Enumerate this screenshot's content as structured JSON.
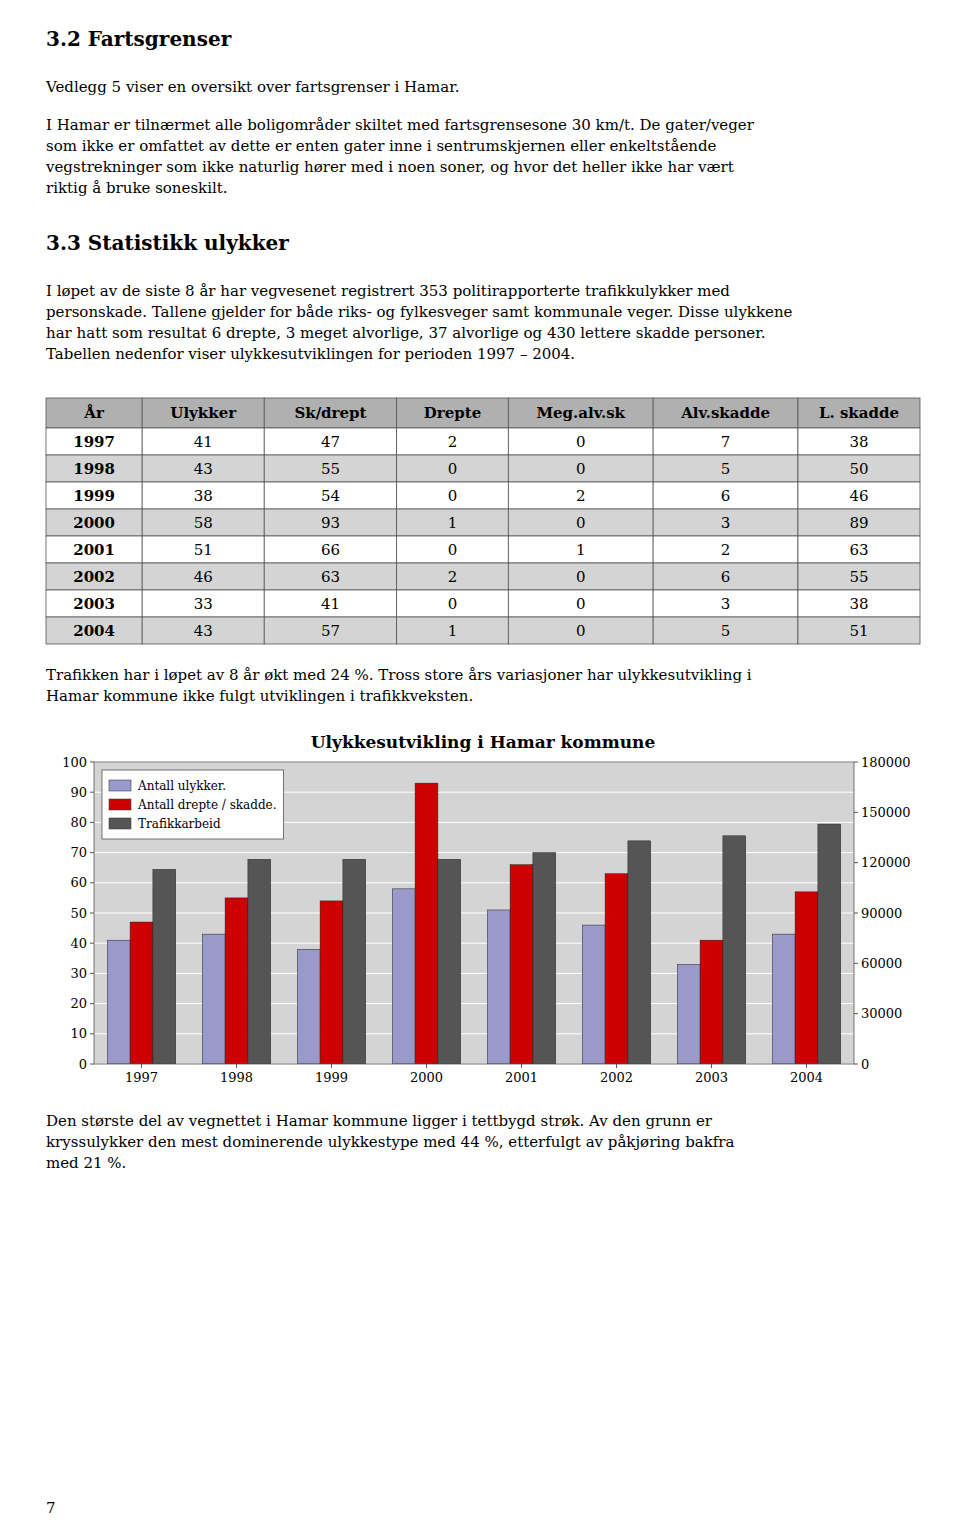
{
  "page": {
    "page_title": "3.2   Fartsgrenser",
    "intro": "Vedlegg 5 viser en oversikt over fartsgrenser i Hamar.",
    "body_lines": [
      "I Hamar er tilnærmet alle boligområder skiltet med fartsgrensesone 30 km/t. De gater/veger",
      "som ikke er omfattet av dette er enten gater inne i sentrumskjernen eller enkeltstående",
      "vegstrekninger som ikke naturlig hører med i noen soner, og hvor det heller ikke har vært",
      "riktig å bruke soneskilt."
    ],
    "section_title": "3.3   Statistikk ulykker",
    "section_lines": [
      "I løpet av de siste 8 år har vegvesenet registrert 353 politirapporterte trafikkulykker med",
      "personskade. Tallene gjelder for både riks- og fylkesveger samt kommunale veger. Disse ulykkene",
      "har hatt som resultat 6 drepte, 3 meget alvorlige, 37 alvorlige og 430 lettere skadde personer.",
      "Tabellen nedenfor viser ulykkesutviklingen for perioden 1997 – 2004."
    ],
    "table": {
      "headers": [
        "År",
        "Ulykker",
        "Sk/drept",
        "Drepte",
        "Meg.alv.sk",
        "Alv.skadde",
        "L. skadde"
      ],
      "rows": [
        [
          "1997",
          "41",
          "47",
          "2",
          "0",
          "7",
          "38"
        ],
        [
          "1998",
          "43",
          "55",
          "0",
          "0",
          "5",
          "50"
        ],
        [
          "1999",
          "38",
          "54",
          "0",
          "2",
          "6",
          "46"
        ],
        [
          "2000",
          "58",
          "93",
          "1",
          "0",
          "3",
          "89"
        ],
        [
          "2001",
          "51",
          "66",
          "0",
          "1",
          "2",
          "63"
        ],
        [
          "2002",
          "46",
          "63",
          "2",
          "0",
          "6",
          "55"
        ],
        [
          "2003",
          "33",
          "41",
          "0",
          "0",
          "3",
          "38"
        ],
        [
          "2004",
          "43",
          "57",
          "1",
          "0",
          "5",
          "51"
        ]
      ]
    },
    "after_table_lines": [
      "Trafikken har i løpet av 8 år økt med 24 %. Tross store års variasjoner har ulykkesutvikling i",
      "Hamar kommune ikke fulgt utviklingen i trafikkveksten."
    ],
    "after_chart_lines": [
      "Den største del av vegnettet i Hamar kommune ligger i tettbygd strøk. Av den grunn er",
      "kryssulykker den mest dominerende ulykkestype med 44 %, etterfulgt av påkjøring bakfra",
      "med 21 %."
    ],
    "page_number": "7"
  },
  "chart_data": {
    "type": "bar",
    "title": "Ulykkesutvikling i Hamar kommune",
    "categories": [
      "1997",
      "1998",
      "1999",
      "2000",
      "2001",
      "2002",
      "2003",
      "2004"
    ],
    "series": [
      {
        "name": "Antall ulykker.",
        "color": "#9999CC",
        "values": [
          41,
          43,
          38,
          58,
          51,
          46,
          33,
          43
        ]
      },
      {
        "name": "Antall drepte / skadde.",
        "color": "#CC0000",
        "values": [
          47,
          55,
          54,
          93,
          66,
          63,
          41,
          57
        ]
      },
      {
        "name": "Trafikkarbeid",
        "color": "#555555",
        "axis": "y2",
        "values": [
          116000,
          122000,
          122000,
          122000,
          126000,
          133000,
          136000,
          143000
        ]
      }
    ],
    "ylim": [
      0,
      100
    ],
    "yticks": [
      0,
      10,
      20,
      30,
      40,
      50,
      60,
      70,
      80,
      90,
      100
    ],
    "y2lim": [
      0,
      180000
    ],
    "y2ticks": [
      0,
      30000,
      60000,
      90000,
      120000,
      150000,
      180000
    ],
    "grid": true,
    "legend": "upper left"
  }
}
